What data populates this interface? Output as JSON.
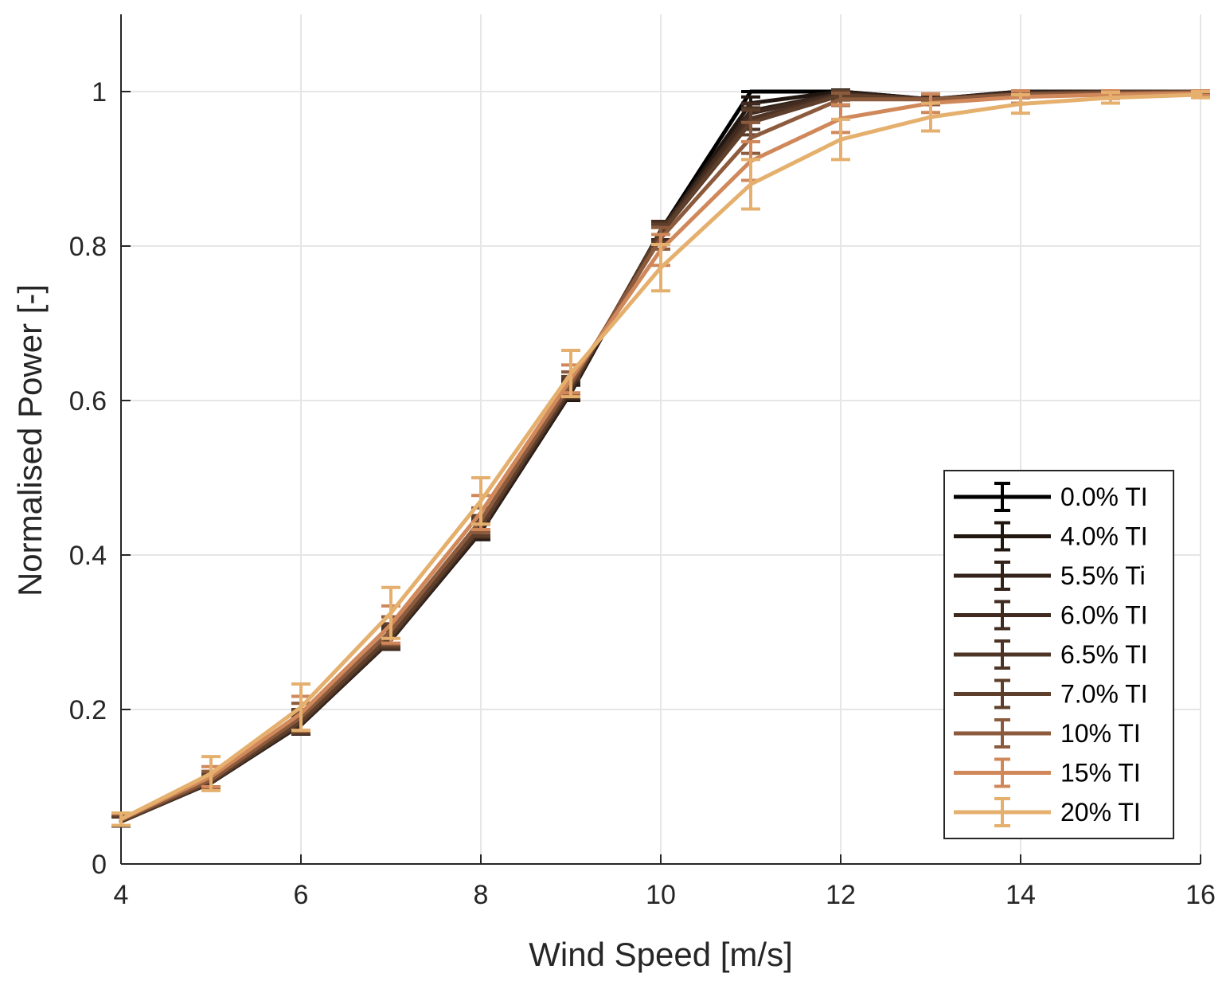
{
  "chart_data": {
    "type": "line",
    "xlabel": "Wind Speed [m/s]",
    "ylabel": "Normalised Power [-]",
    "xlim": [
      4,
      16
    ],
    "ylim": [
      0,
      1.1
    ],
    "xticks": [
      "4",
      "6",
      "8",
      "10",
      "12",
      "14",
      "16"
    ],
    "yticks": [
      "0",
      "0.2",
      "0.4",
      "0.6",
      "0.8",
      "1"
    ],
    "grid": true,
    "legend_position": "bottom-right",
    "error_bars": true,
    "x": [
      4,
      5,
      6,
      7,
      8,
      9,
      10,
      11,
      12,
      13,
      14,
      15,
      16
    ],
    "series": [
      {
        "name": "0.0% TI",
        "color": "#000000",
        "values": [
          0.055,
          0.105,
          0.18,
          0.29,
          0.43,
          0.61,
          0.82,
          1.0,
          1.0,
          0.99,
          1.0,
          1.0,
          1.0
        ],
        "errors": [
          0.006,
          0.008,
          0.012,
          0.012,
          0.01,
          0.01,
          0.012,
          0.0,
          0.0,
          0.003,
          0.0,
          0.0,
          0.0
        ]
      },
      {
        "name": "4.0% TI",
        "color": "#221710",
        "values": [
          0.055,
          0.105,
          0.18,
          0.29,
          0.43,
          0.61,
          0.82,
          0.985,
          1.0,
          0.99,
          1.0,
          1.0,
          1.0
        ],
        "errors": [
          0.006,
          0.008,
          0.012,
          0.012,
          0.01,
          0.01,
          0.012,
          0.008,
          0.002,
          0.004,
          0.001,
          0.0,
          0.0
        ]
      },
      {
        "name": "5.5% Ti",
        "color": "#33221a",
        "values": [
          0.055,
          0.105,
          0.18,
          0.29,
          0.432,
          0.612,
          0.82,
          0.975,
          0.998,
          0.99,
          0.999,
          1.0,
          1.0
        ],
        "errors": [
          0.006,
          0.008,
          0.012,
          0.012,
          0.01,
          0.01,
          0.012,
          0.01,
          0.003,
          0.005,
          0.002,
          0.001,
          0.0
        ]
      },
      {
        "name": "6.0% TI",
        "color": "#412b20",
        "values": [
          0.055,
          0.106,
          0.182,
          0.292,
          0.434,
          0.614,
          0.82,
          0.972,
          0.997,
          0.99,
          0.998,
          1.0,
          1.0
        ],
        "errors": [
          0.006,
          0.009,
          0.013,
          0.013,
          0.011,
          0.011,
          0.012,
          0.012,
          0.004,
          0.005,
          0.002,
          0.001,
          0.0
        ]
      },
      {
        "name": "6.5% TI",
        "color": "#4e3424",
        "values": [
          0.055,
          0.106,
          0.183,
          0.294,
          0.436,
          0.616,
          0.818,
          0.965,
          0.996,
          0.99,
          0.998,
          0.999,
          1.0
        ],
        "errors": [
          0.006,
          0.009,
          0.014,
          0.014,
          0.012,
          0.012,
          0.012,
          0.014,
          0.005,
          0.006,
          0.003,
          0.001,
          0.0
        ]
      },
      {
        "name": "7.0% TI",
        "color": "#5e3f2b",
        "values": [
          0.056,
          0.107,
          0.185,
          0.296,
          0.438,
          0.618,
          0.816,
          0.96,
          0.995,
          0.99,
          0.997,
          0.999,
          1.0
        ],
        "errors": [
          0.006,
          0.009,
          0.015,
          0.015,
          0.013,
          0.013,
          0.012,
          0.016,
          0.006,
          0.006,
          0.003,
          0.002,
          0.001
        ]
      },
      {
        "name": "10% TI",
        "color": "#8c5a3c",
        "values": [
          0.057,
          0.109,
          0.19,
          0.302,
          0.445,
          0.622,
          0.81,
          0.94,
          0.99,
          0.99,
          0.996,
          0.998,
          0.999
        ],
        "errors": [
          0.007,
          0.011,
          0.018,
          0.018,
          0.016,
          0.015,
          0.014,
          0.02,
          0.008,
          0.007,
          0.004,
          0.002,
          0.001
        ]
      },
      {
        "name": "15% TI",
        "color": "#d0885a",
        "values": [
          0.058,
          0.113,
          0.195,
          0.31,
          0.455,
          0.628,
          0.795,
          0.91,
          0.965,
          0.985,
          0.993,
          0.996,
          0.998
        ],
        "errors": [
          0.008,
          0.013,
          0.022,
          0.024,
          0.022,
          0.018,
          0.02,
          0.025,
          0.018,
          0.012,
          0.008,
          0.005,
          0.003
        ]
      },
      {
        "name": "20% TI",
        "color": "#e5b06e",
        "values": [
          0.058,
          0.117,
          0.203,
          0.325,
          0.47,
          0.635,
          0.772,
          0.88,
          0.938,
          0.967,
          0.984,
          0.992,
          0.996
        ],
        "errors": [
          0.008,
          0.022,
          0.03,
          0.033,
          0.03,
          0.03,
          0.03,
          0.032,
          0.026,
          0.018,
          0.012,
          0.007,
          0.004
        ]
      }
    ]
  }
}
